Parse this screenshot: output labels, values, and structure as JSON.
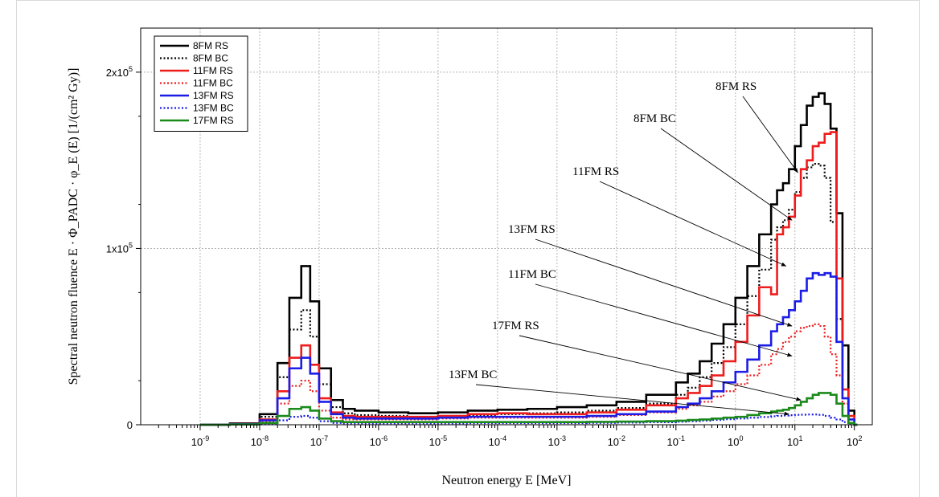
{
  "chart_data": {
    "type": "line",
    "xlabel": "Neutron energy E [MeV]",
    "ylabel": "Spectral neutron fluence E · Φ_PADC · φ_E (E) [1/(cm² Gy)]",
    "xscale": "log",
    "xlim": [
      1e-10,
      200
    ],
    "ylim": [
      0,
      225000
    ],
    "x_ticks": [
      {
        "base": "10",
        "exp": "-9"
      },
      {
        "base": "10",
        "exp": "-8"
      },
      {
        "base": "10",
        "exp": "-7"
      },
      {
        "base": "10",
        "exp": "-6"
      },
      {
        "base": "10",
        "exp": "-5"
      },
      {
        "base": "10",
        "exp": "-4"
      },
      {
        "base": "10",
        "exp": "-3"
      },
      {
        "base": "10",
        "exp": "-2"
      },
      {
        "base": "10",
        "exp": "-1"
      },
      {
        "base": "10",
        "exp": "0"
      },
      {
        "base": "10",
        "exp": "1"
      },
      {
        "base": "10",
        "exp": "2"
      }
    ],
    "y_ticks": [
      {
        "base": "0",
        "exp": ""
      },
      {
        "base": "1x10",
        "exp": "5"
      },
      {
        "base": "2x10",
        "exp": "5"
      }
    ],
    "grid": true,
    "legend_position": "top-left",
    "log_x": [
      -9,
      -8.5,
      -8,
      -7.7,
      -7.5,
      -7.3,
      -7.15,
      -7,
      -6.8,
      -6.6,
      -6.4,
      -6,
      -5.5,
      -5,
      -4.5,
      -4,
      -3.5,
      -3,
      -2.5,
      -2,
      -1.5,
      -1,
      -0.8,
      -0.6,
      -0.4,
      -0.2,
      0,
      0.2,
      0.4,
      0.6,
      0.7,
      0.8,
      0.9,
      1,
      1.1,
      1.2,
      1.3,
      1.4,
      1.5,
      1.6,
      1.7,
      1.8,
      1.9,
      2,
      2.05
    ],
    "series": [
      {
        "name": "8FM RS",
        "color": "#000000",
        "style": "solid",
        "values": [
          0,
          800,
          6000,
          35000,
          72000,
          90000,
          70000,
          32000,
          14000,
          9000,
          8000,
          7000,
          6500,
          7000,
          8000,
          8500,
          9000,
          10000,
          11000,
          13000,
          17000,
          24000,
          29000,
          36000,
          46000,
          57000,
          72000,
          90000,
          108000,
          125000,
          133000,
          137000,
          145000,
          158000,
          170000,
          181000,
          186000,
          188000,
          182000,
          168000,
          120000,
          45000,
          8000,
          0,
          0
        ]
      },
      {
        "name": "8FM BC",
        "color": "#000000",
        "style": "dotted",
        "values": [
          0,
          600,
          4500,
          27000,
          54000,
          65000,
          50000,
          23000,
          10000,
          6500,
          5500,
          5000,
          4500,
          5000,
          5500,
          6000,
          6500,
          7000,
          8000,
          9500,
          12000,
          17000,
          21000,
          27000,
          35000,
          44000,
          57000,
          73000,
          88000,
          105000,
          112000,
          116000,
          122000,
          132000,
          140000,
          146000,
          148000,
          147000,
          140000,
          115000,
          60000,
          15000,
          3000,
          0,
          0
        ]
      },
      {
        "name": "11FM RS",
        "color": "#ee1c1c",
        "style": "solid",
        "values": [
          0,
          500,
          3000,
          19000,
          38000,
          45000,
          34000,
          15000,
          7000,
          5000,
          4500,
          4500,
          4500,
          5000,
          6000,
          6500,
          6000,
          6000,
          7000,
          8500,
          11000,
          15000,
          18000,
          22000,
          28000,
          36000,
          47000,
          62000,
          78000,
          74000,
          108000,
          112000,
          118000,
          130000,
          145000,
          150000,
          158000,
          160000,
          165000,
          166000,
          83000,
          20000,
          5000,
          0,
          0
        ]
      },
      {
        "name": "11FM BC",
        "color": "#ee1c1c",
        "style": "dotted",
        "values": [
          0,
          400,
          2000,
          12000,
          22000,
          25000,
          19000,
          8000,
          4000,
          3000,
          3000,
          3000,
          3000,
          3500,
          4000,
          4000,
          4000,
          4000,
          4500,
          5500,
          7000,
          9000,
          11000,
          13000,
          16000,
          19000,
          23000,
          28000,
          34000,
          40000,
          43000,
          47000,
          50000,
          53000,
          55000,
          56000,
          57000,
          56000,
          50000,
          40000,
          28000,
          12000,
          3000,
          0,
          0
        ]
      },
      {
        "name": "13FM RS",
        "color": "#1c1ce6",
        "style": "solid",
        "values": [
          0,
          400,
          2500,
          15000,
          32000,
          38000,
          29000,
          13000,
          6000,
          4000,
          3500,
          3500,
          3500,
          4000,
          4500,
          4500,
          4500,
          4500,
          5000,
          6000,
          7500,
          10000,
          12000,
          15000,
          19000,
          24000,
          30000,
          37000,
          45000,
          53000,
          57000,
          61000,
          65000,
          70000,
          76000,
          83000,
          86000,
          85000,
          86000,
          84000,
          47000,
          15000,
          3000,
          0,
          0
        ]
      },
      {
        "name": "13FM BC",
        "color": "#1c1ce6",
        "style": "dotted",
        "values": [
          0,
          100,
          500,
          2500,
          4500,
          5000,
          4000,
          2000,
          1000,
          800,
          800,
          800,
          800,
          800,
          900,
          900,
          900,
          900,
          1000,
          1200,
          1400,
          1700,
          2000,
          2300,
          2700,
          3100,
          3500,
          4000,
          4400,
          4800,
          5000,
          5200,
          5400,
          5600,
          5700,
          5800,
          5800,
          5600,
          5000,
          4000,
          3000,
          1500,
          500,
          0,
          0
        ]
      },
      {
        "name": "17FM RS",
        "color": "#1a8a1a",
        "style": "solid",
        "values": [
          0,
          200,
          1000,
          5000,
          9000,
          10000,
          8000,
          3500,
          2000,
          1500,
          1500,
          1500,
          1500,
          1500,
          1500,
          1500,
          1500,
          1500,
          1600,
          1800,
          2000,
          2300,
          2700,
          3000,
          3500,
          4000,
          4500,
          5500,
          6500,
          7500,
          8000,
          8500,
          9500,
          11000,
          13000,
          15000,
          17000,
          18000,
          18000,
          17000,
          12000,
          5000,
          1000,
          0,
          0
        ]
      }
    ],
    "annotations": [
      {
        "text": "8FM RS",
        "target_log_x": 1.05,
        "target_y": 143000
      },
      {
        "text": "8FM BC",
        "target_log_x": 0.95,
        "target_y": 116000
      },
      {
        "text": "11FM RS",
        "target_log_x": 0.85,
        "target_y": 90000
      },
      {
        "text": "13FM RS",
        "target_log_x": 0.95,
        "target_y": 56000
      },
      {
        "text": "11FM BC",
        "target_log_x": 0.95,
        "target_y": 39000
      },
      {
        "text": "17FM RS",
        "target_log_x": 1.1,
        "target_y": 14000
      },
      {
        "text": "13FM BC",
        "target_log_x": 0.9,
        "target_y": 6000
      }
    ]
  }
}
